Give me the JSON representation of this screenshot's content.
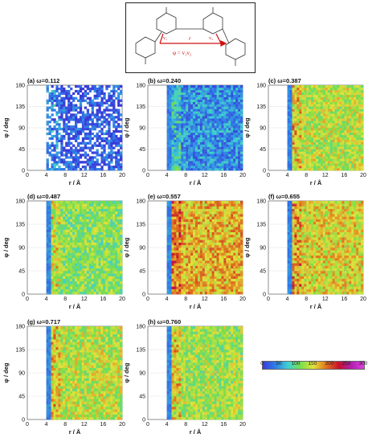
{
  "scheme": {
    "r_label": "r",
    "v1_label": "v₁",
    "v2_label": "v₂",
    "phi_label": "φ = v₁v₂"
  },
  "axes": {
    "xlabel": "r / Å",
    "ylabel": "φ / deg",
    "x_ticks": [
      "0",
      "4",
      "8",
      "12",
      "16",
      "20"
    ],
    "y_ticks": [
      "0",
      "45",
      "90",
      "135",
      "180"
    ]
  },
  "colorbar": {
    "ticks": [
      "0",
      "50",
      "100",
      "150",
      "200",
      "250",
      "300"
    ],
    "colors": [
      "#3a3ad8",
      "#2f7fe8",
      "#3fd0d0",
      "#79df4a",
      "#e4e23a",
      "#e0741e",
      "#c8102e",
      "#b020b0",
      "#e040e0"
    ]
  },
  "chart_data": [
    {
      "type": "heatmap",
      "title": "(a) ω=0.112",
      "xlabel": "r / Å",
      "ylabel": "φ / deg",
      "xlim": [
        0,
        20
      ],
      "ylim": [
        0,
        180
      ],
      "mean_level": 0.05
    },
    {
      "type": "heatmap",
      "title": "(b) ω=0.240",
      "xlabel": "r / Å",
      "ylabel": "φ / deg",
      "xlim": [
        0,
        20
      ],
      "ylim": [
        0,
        180
      ],
      "mean_level": 0.15
    },
    {
      "type": "heatmap",
      "title": "(c) ω=0.387",
      "xlabel": "r / Å",
      "ylabel": "φ / deg",
      "xlim": [
        0,
        20
      ],
      "ylim": [
        0,
        180
      ],
      "mean_level": 0.45
    },
    {
      "type": "heatmap",
      "title": "(d) ω=0.487",
      "xlabel": "r / Å",
      "ylabel": "φ / deg",
      "xlim": [
        0,
        20
      ],
      "ylim": [
        0,
        180
      ],
      "mean_level": 0.38
    },
    {
      "type": "heatmap",
      "title": "(e) ω=0.557",
      "xlabel": "r / Å",
      "ylabel": "φ / deg",
      "xlim": [
        0,
        20
      ],
      "ylim": [
        0,
        180
      ],
      "mean_level": 0.55
    },
    {
      "type": "heatmap",
      "title": "(f) ω=0.655",
      "xlabel": "r / Å",
      "ylabel": "φ / deg",
      "xlim": [
        0,
        20
      ],
      "ylim": [
        0,
        180
      ],
      "mean_level": 0.5
    },
    {
      "type": "heatmap",
      "title": "(g) ω=0.717",
      "xlabel": "r / Å",
      "ylabel": "φ / deg",
      "xlim": [
        0,
        20
      ],
      "ylim": [
        0,
        180
      ],
      "mean_level": 0.45
    },
    {
      "type": "heatmap",
      "title": "(h) ω=0.760",
      "xlabel": "r / Å",
      "ylabel": "φ / deg",
      "xlim": [
        0,
        20
      ],
      "ylim": [
        0,
        180
      ],
      "mean_level": 0.42
    }
  ]
}
